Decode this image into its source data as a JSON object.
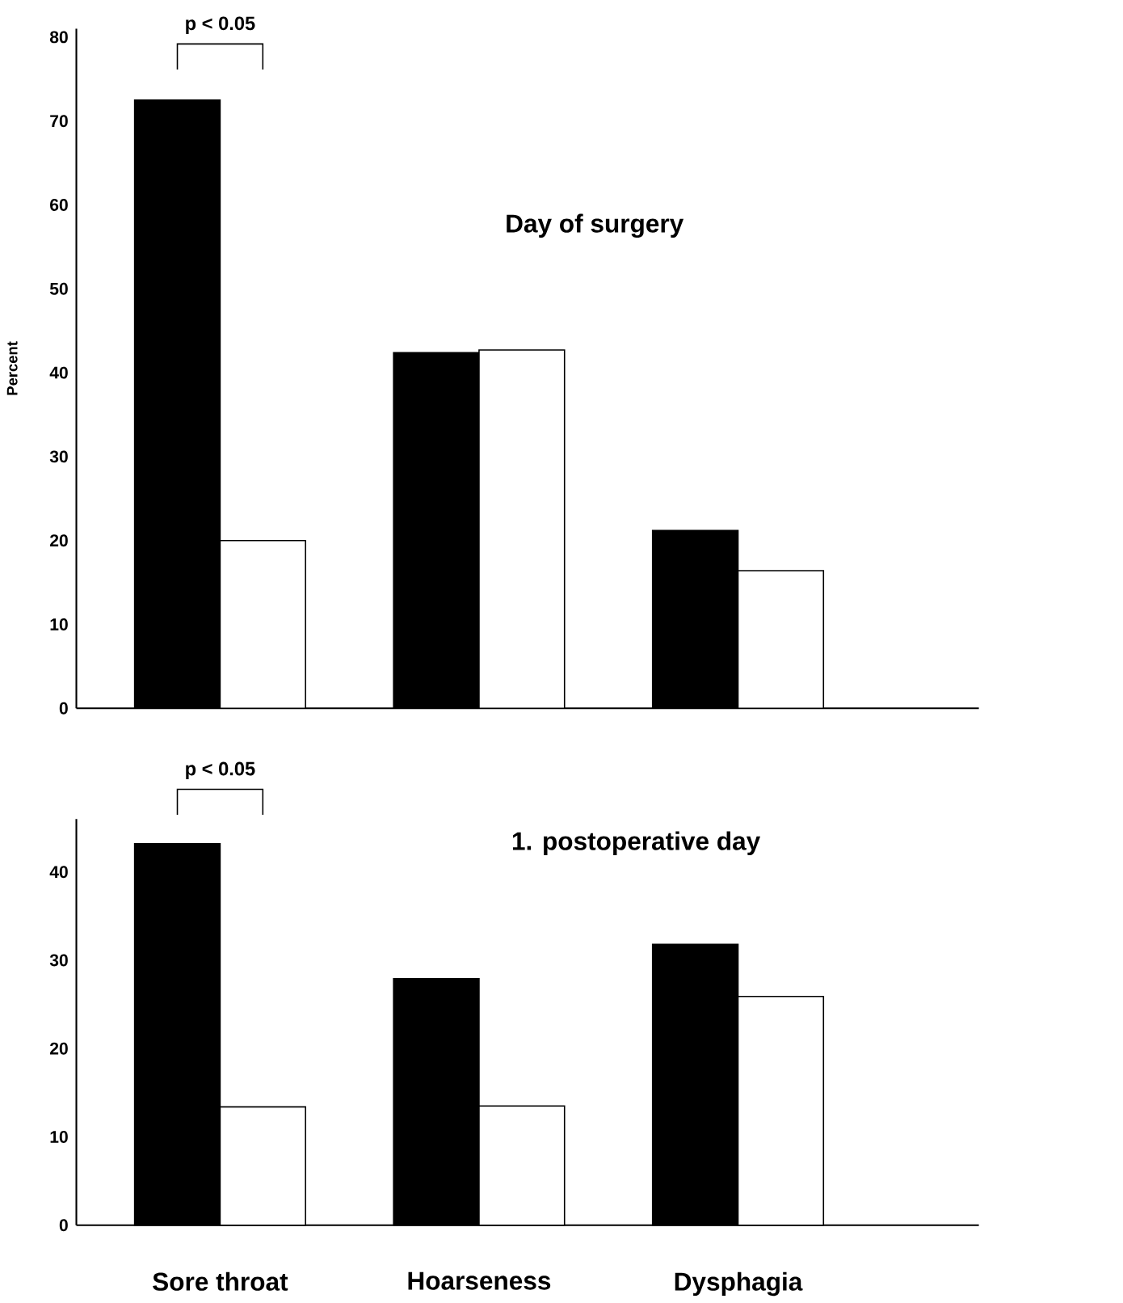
{
  "chart_data": [
    {
      "type": "bar",
      "title": "Day of surgery",
      "ylabel": "Percent",
      "categories": [
        null,
        null,
        null
      ],
      "series": [
        {
          "color": "#000000",
          "values": [
            72.5,
            42.4,
            21.2
          ]
        },
        {
          "color": "#ffffff",
          "values": [
            20,
            42.7,
            16.4
          ]
        }
      ],
      "ylim": [
        0,
        81
      ],
      "yticks": [
        0,
        10,
        20,
        30,
        40,
        50,
        60,
        70,
        80
      ],
      "tick_labels": "y",
      "annotations": [
        "p < 0.05"
      ]
    },
    {
      "type": "bar",
      "title": "1. postoperative day",
      "categories": [
        "Sore throat",
        "Hoarseness",
        "Dysphagia"
      ],
      "series": [
        {
          "color": "#000000",
          "values": [
            43.2,
            27.9,
            31.8
          ]
        },
        {
          "color": "#ffffff",
          "values": [
            13.4,
            13.5,
            25.9
          ]
        }
      ],
      "ylim": [
        0,
        46
      ],
      "yticks": [
        0,
        10,
        20,
        30,
        40
      ],
      "annotations": [
        "p < 0.05"
      ]
    }
  ]
}
